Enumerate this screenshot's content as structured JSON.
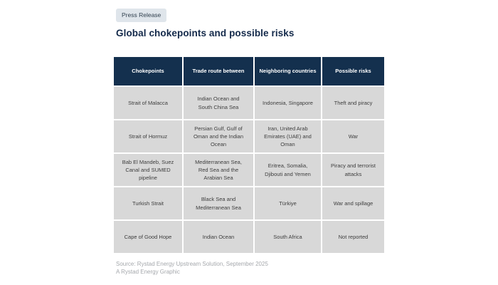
{
  "badge": {
    "label": "Press Release"
  },
  "title": "Global chokepoints and possible risks",
  "table": {
    "headers": [
      "Chokepoints",
      "Trade route between",
      "Neighboring countries",
      "Possible risks"
    ],
    "rows": [
      [
        "Strait of Malacca",
        "Indian Ocean and South China Sea",
        "Indonesia, Singapore",
        "Theft and piracy"
      ],
      [
        "Strait of Hormuz",
        "Persian Gulf, Gulf of Oman and the Indian Ocean",
        "Iran, United Arab Emirates (UAE) and Oman",
        "War"
      ],
      [
        "Bab El Mandeb, Suez Canal and SUMED pipeline",
        "Mediterranean Sea, Red Sea and the Arabian Sea",
        "Eritrea, Somalia, Djibouti and Yemen",
        "Piracy and terrorist attacks"
      ],
      [
        "Turkish Strait",
        "Black Sea and Mediterranean Sea",
        "Türkiye",
        "War and spillage"
      ],
      [
        "Cape of Good Hope",
        "Indian Ocean",
        "South Africa",
        "Not reported"
      ]
    ]
  },
  "footer": {
    "source": "Source: Rystad Energy Upstream Solution, September 2025",
    "credit": "A Rystad Energy Graphic"
  },
  "colors": {
    "header_bg": "#14304E",
    "row_bg": "#D8D8D8",
    "title_text": "#13294A",
    "badge_bg": "#DFE5EB",
    "badge_text": "#31404E",
    "cell_text": "#3E3E3E",
    "footer_text": "#A5A8AC"
  },
  "chart_data": {
    "type": "table",
    "title": "Global chokepoints and possible risks",
    "columns": [
      "Chokepoints",
      "Trade route between",
      "Neighboring countries",
      "Possible risks"
    ],
    "rows": [
      [
        "Strait of Malacca",
        "Indian Ocean and South China Sea",
        "Indonesia, Singapore",
        "Theft and piracy"
      ],
      [
        "Strait of Hormuz",
        "Persian Gulf, Gulf of Oman and the Indian Ocean",
        "Iran, United Arab Emirates (UAE) and Oman",
        "War"
      ],
      [
        "Bab El Mandeb, Suez Canal and SUMED pipeline",
        "Mediterranean Sea, Red Sea and the Arabian Sea",
        "Eritrea, Somalia, Djibouti and Yemen",
        "Piracy and terrorist attacks"
      ],
      [
        "Turkish Strait",
        "Black Sea and Mediterranean Sea",
        "Türkiye",
        "War and spillage"
      ],
      [
        "Cape of Good Hope",
        "Indian Ocean",
        "South Africa",
        "Not reported"
      ]
    ],
    "source_note": "Source: Rystad Energy Upstream Solution, September 2025",
    "credit": "A Rystad Energy Graphic"
  }
}
